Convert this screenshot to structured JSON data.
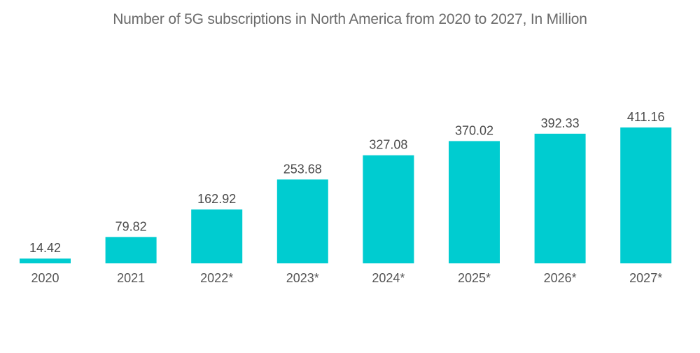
{
  "chart_data": {
    "type": "bar",
    "title": "Number of 5G subscriptions in North America from 2020 to 2027, In Million",
    "categories": [
      "2020",
      "2021",
      "2022*",
      "2023*",
      "2024*",
      "2025*",
      "2026*",
      "2027*"
    ],
    "values": [
      14.42,
      79.82,
      162.92,
      253.68,
      327.08,
      370.02,
      392.33,
      411.16
    ],
    "value_labels": [
      "14.42",
      "79.82",
      "162.92",
      "253.68",
      "327.08",
      "370.02",
      "392.33",
      "411.16"
    ],
    "xlabel": "",
    "ylabel": "",
    "ylim": [
      0,
      411.16
    ],
    "grid": false,
    "legend": "none",
    "bar_color": "#00ccd0"
  }
}
